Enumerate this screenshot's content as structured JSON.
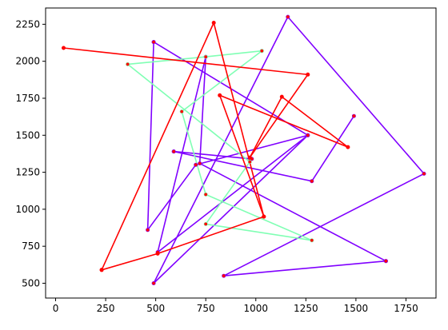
{
  "chart_data": {
    "type": "line",
    "title": "",
    "xlabel": "",
    "ylabel": "",
    "xlim": [
      -50,
      1900
    ],
    "ylim": [
      400,
      2360
    ],
    "grid": false,
    "xticks": [
      0,
      250,
      500,
      750,
      1000,
      1250,
      1500,
      1750
    ],
    "xtick_labels": [
      "0",
      "250",
      "500",
      "750",
      "1000",
      "1250",
      "1500",
      "1750"
    ],
    "yticks": [
      500,
      750,
      1000,
      1250,
      1500,
      1750,
      2000,
      2250
    ],
    "ytick_labels": [
      "500",
      "750",
      "1000",
      "1250",
      "1500",
      "1750",
      "2000",
      "2250"
    ],
    "marker_color": "#ff0000",
    "series": [
      {
        "color": "#8000ff",
        "points": [
          [
            1650,
            650
          ],
          [
            840,
            550
          ],
          [
            1840,
            1240
          ],
          [
            1160,
            2300
          ],
          [
            490,
            500
          ],
          [
            1260,
            1500
          ],
          [
            510,
            710
          ],
          [
            750,
            2030
          ],
          [
            720,
            1310
          ],
          [
            1650,
            650
          ]
        ]
      },
      {
        "color": "#8000ff",
        "points": [
          [
            490,
            2130
          ],
          [
            1260,
            1500
          ],
          [
            700,
            1300
          ],
          [
            460,
            860
          ],
          [
            490,
            2130
          ]
        ]
      },
      {
        "color": "#8000ff",
        "points": [
          [
            590,
            1390
          ],
          [
            980,
            1340
          ],
          [
            590,
            1390
          ],
          [
            1280,
            1190
          ],
          [
            1490,
            1630
          ]
        ]
      },
      {
        "color": "#80ffb4",
        "points": [
          [
            1030,
            2070
          ],
          [
            630,
            1660
          ],
          [
            750,
            1100
          ],
          [
            1280,
            790
          ],
          [
            750,
            900
          ],
          [
            970,
            1320
          ],
          [
            360,
            1980
          ],
          [
            750,
            2030
          ],
          [
            1030,
            2070
          ]
        ]
      },
      {
        "color": "#ff0000",
        "points": [
          [
            230,
            590
          ],
          [
            790,
            2260
          ],
          [
            1040,
            950
          ],
          [
            510,
            700
          ],
          [
            230,
            590
          ]
        ]
      },
      {
        "color": "#ff0000",
        "points": [
          [
            40,
            2090
          ],
          [
            1260,
            1910
          ],
          [
            970,
            1350
          ],
          [
            1130,
            1760
          ],
          [
            1460,
            1420
          ],
          [
            820,
            1770
          ],
          [
            1040,
            950
          ]
        ]
      }
    ]
  }
}
